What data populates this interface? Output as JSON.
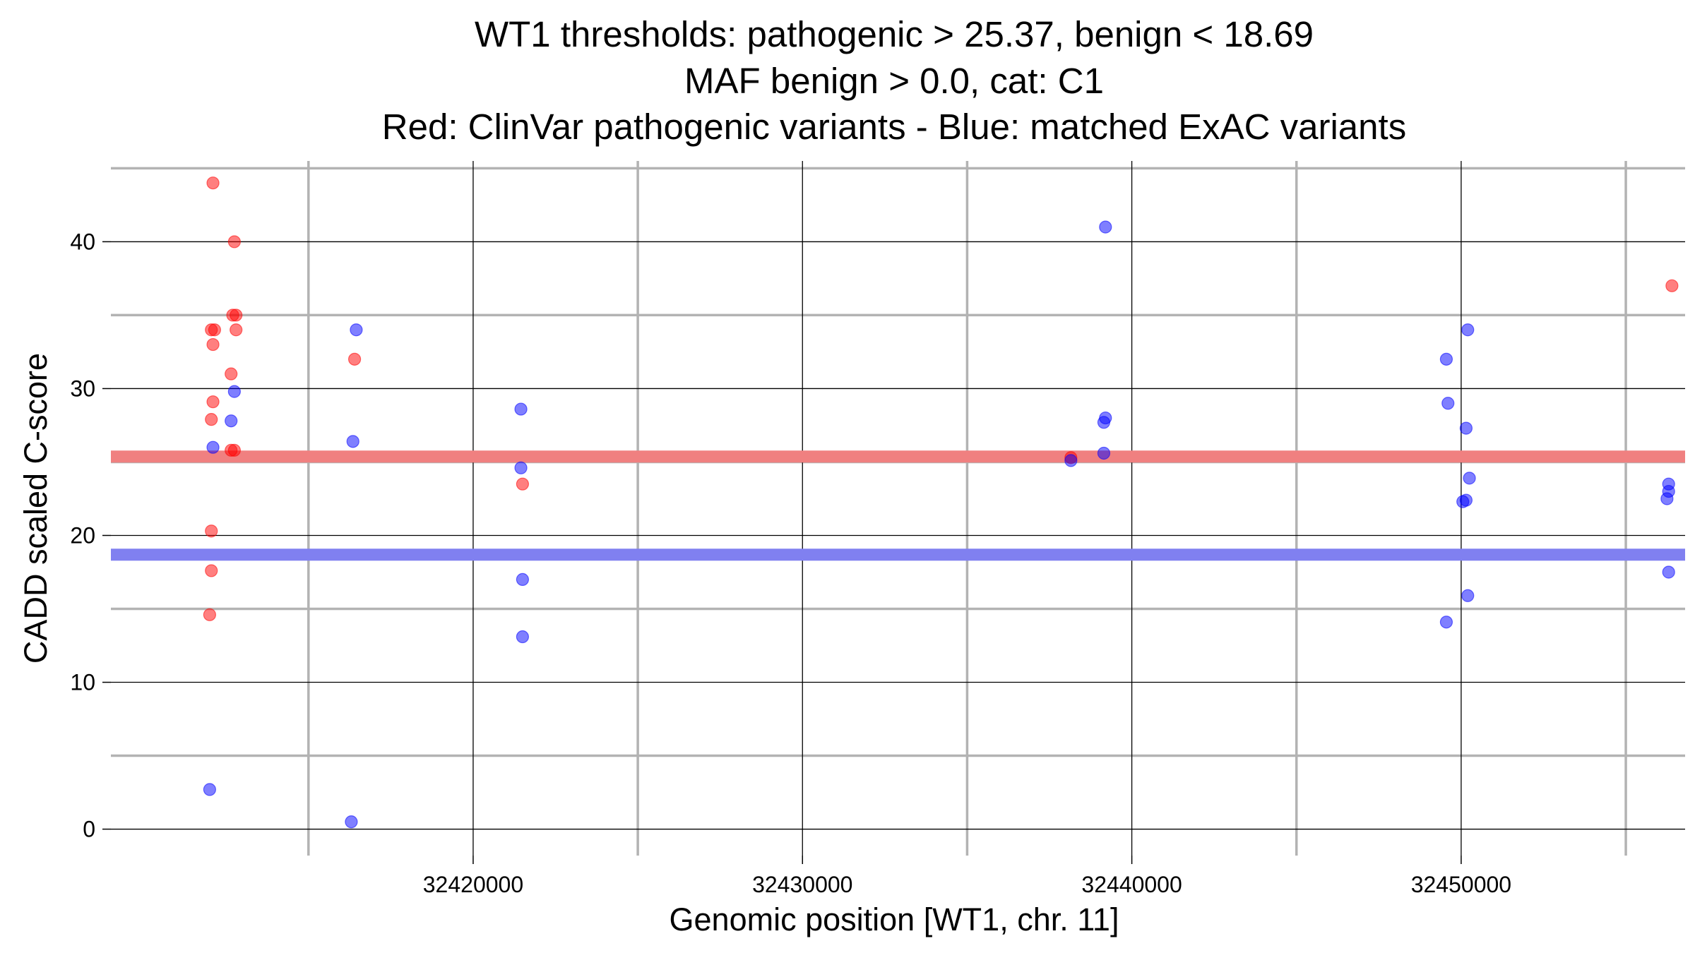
{
  "chart_data": {
    "type": "scatter",
    "title_lines": [
      "WT1 thresholds: pathogenic > 25.37, benign < 18.69",
      "MAF benign > 0.0, cat: C1",
      "Red: ClinVar pathogenic variants - Blue: matched ExAC variants"
    ],
    "xlabel": "Genomic position [WT1, chr. 11]",
    "ylabel": "CADD scaled C-score",
    "xlim": [
      32409000,
      32456800
    ],
    "ylim": [
      -1.8,
      45.5
    ],
    "x_ticks": [
      32420000,
      32430000,
      32440000,
      32450000
    ],
    "x_tick_labels": [
      "32420000",
      "32430000",
      "32440000",
      "32450000"
    ],
    "x_minor_ticks": [
      32415000,
      32425000,
      32435000,
      32445000,
      32455000
    ],
    "y_ticks": [
      0,
      10,
      20,
      30,
      40
    ],
    "y_tick_labels": [
      "0",
      "10",
      "20",
      "30",
      "40"
    ],
    "y_minor_ticks": [
      5,
      15,
      25,
      35,
      45
    ],
    "thresholds": [
      {
        "name": "pathogenic",
        "value": 25.37,
        "color": "#f08080"
      },
      {
        "name": "benign",
        "value": 18.69,
        "color": "#8080f0"
      }
    ],
    "colors": {
      "pathogenic": "#ff0000",
      "benign": "#0000ff",
      "major_grid": "#000000",
      "minor_grid": "#b3b3b3"
    },
    "series": [
      {
        "name": "ClinVar pathogenic",
        "color": "#ff0000",
        "points": [
          [
            32412100,
            44
          ],
          [
            32412750,
            40
          ],
          [
            32412050,
            34
          ],
          [
            32412150,
            34
          ],
          [
            32412700,
            35
          ],
          [
            32412800,
            35
          ],
          [
            32412800,
            34
          ],
          [
            32412100,
            33
          ],
          [
            32412650,
            31
          ],
          [
            32412100,
            29.1
          ],
          [
            32412050,
            27.9
          ],
          [
            32412650,
            25.8
          ],
          [
            32412750,
            25.8
          ],
          [
            32412050,
            20.3
          ],
          [
            32412050,
            17.6
          ],
          [
            32412000,
            14.6
          ],
          [
            32416400,
            32
          ],
          [
            32421500,
            23.5
          ],
          [
            32438150,
            25.3
          ],
          [
            32456400,
            37
          ]
        ]
      },
      {
        "name": "ExAC matched",
        "color": "#0000ff",
        "points": [
          [
            32412750,
            29.8
          ],
          [
            32412650,
            27.8
          ],
          [
            32412100,
            26
          ],
          [
            32412000,
            2.7
          ],
          [
            32416450,
            34
          ],
          [
            32416350,
            26.4
          ],
          [
            32416300,
            0.5
          ],
          [
            32421450,
            28.6
          ],
          [
            32421450,
            24.6
          ],
          [
            32421500,
            17
          ],
          [
            32421500,
            13.1
          ],
          [
            32439200,
            41
          ],
          [
            32439200,
            28
          ],
          [
            32439150,
            27.7
          ],
          [
            32439150,
            25.6
          ],
          [
            32438150,
            25.1
          ],
          [
            32449550,
            32
          ],
          [
            32449600,
            29
          ],
          [
            32450200,
            34
          ],
          [
            32450150,
            27.3
          ],
          [
            32450250,
            23.9
          ],
          [
            32450150,
            22.4
          ],
          [
            32450050,
            22.3
          ],
          [
            32450200,
            15.9
          ],
          [
            32449550,
            14.1
          ],
          [
            32456300,
            23.5
          ],
          [
            32456300,
            23
          ],
          [
            32456250,
            22.5
          ],
          [
            32456300,
            17.5
          ]
        ]
      }
    ]
  }
}
